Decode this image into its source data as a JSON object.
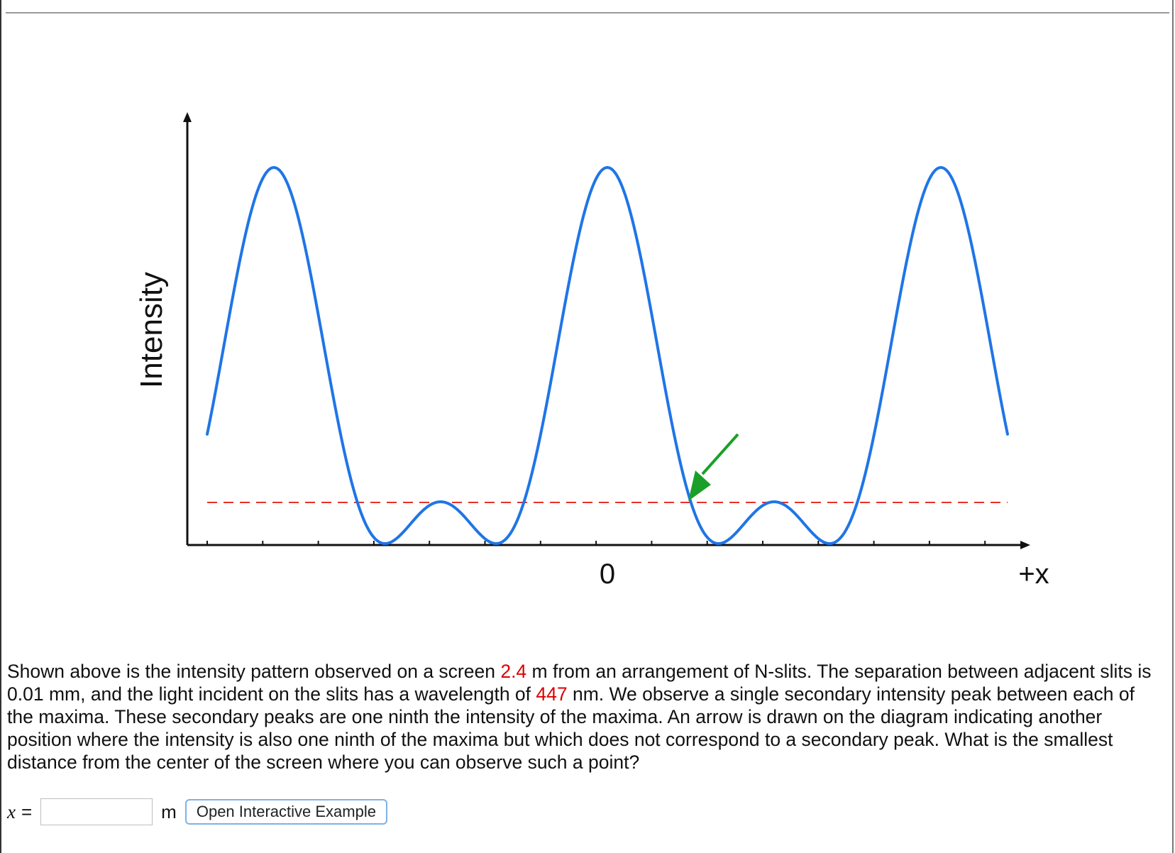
{
  "diagram": {
    "y_axis_label": "Intensity",
    "x_origin_label": "0",
    "x_axis_end_label": "+x",
    "colors": {
      "curve": "#1f75e6",
      "threshold_line": "#e8302a",
      "arrow": "#1aa028",
      "axis": "#111111"
    }
  },
  "question": {
    "part1": "Shown above is the intensity pattern observed on a screen ",
    "distance_value": "2.4",
    "part2": " m from an arrangement of N-slits. The separation between adjacent slits is 0.01 mm, and the light incident on the slits has a wavelength of ",
    "wavelength_value": "447",
    "part3": " nm. We observe a single secondary intensity peak between each of the maxima. These secondary peaks are one ninth the intensity of the maxima. An arrow is drawn on the diagram indicating another position where the intensity is also one ninth of the maxima but which does not correspond to a secondary peak. What is the smallest distance from the center of the screen where you can observe such a point?"
  },
  "answer": {
    "variable": "x",
    "equals": "=",
    "value": "",
    "unit": "m",
    "button_label": "Open Interactive Example"
  }
}
